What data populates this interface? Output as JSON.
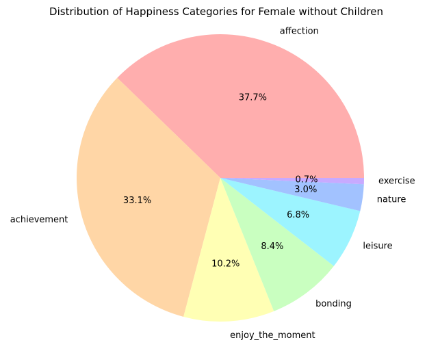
{
  "chart_data": {
    "type": "pie",
    "title": "Distribution of Happiness Categories for Female without Children",
    "start_angle_deg": 0,
    "direction": "counterclockwise",
    "slices": [
      {
        "label": "affection",
        "value": 37.7,
        "pct_text": "37.7%",
        "color": "#ffaeae"
      },
      {
        "label": "achievement",
        "value": 33.1,
        "pct_text": "33.1%",
        "color": "#ffd6a6"
      },
      {
        "label": "enjoy_the_moment",
        "value": 10.2,
        "pct_text": "10.2%",
        "color": "#ffffb4"
      },
      {
        "label": "bonding",
        "value": 8.4,
        "pct_text": "8.4%",
        "color": "#c9ffc0"
      },
      {
        "label": "leisure",
        "value": 6.8,
        "pct_text": "6.8%",
        "color": "#9cf4ff"
      },
      {
        "label": "nature",
        "value": 3.0,
        "pct_text": "3.0%",
        "color": "#a2c2ff"
      },
      {
        "label": "exercise",
        "value": 0.7,
        "pct_text": "0.7%",
        "color": "#c8aaff"
      }
    ]
  }
}
